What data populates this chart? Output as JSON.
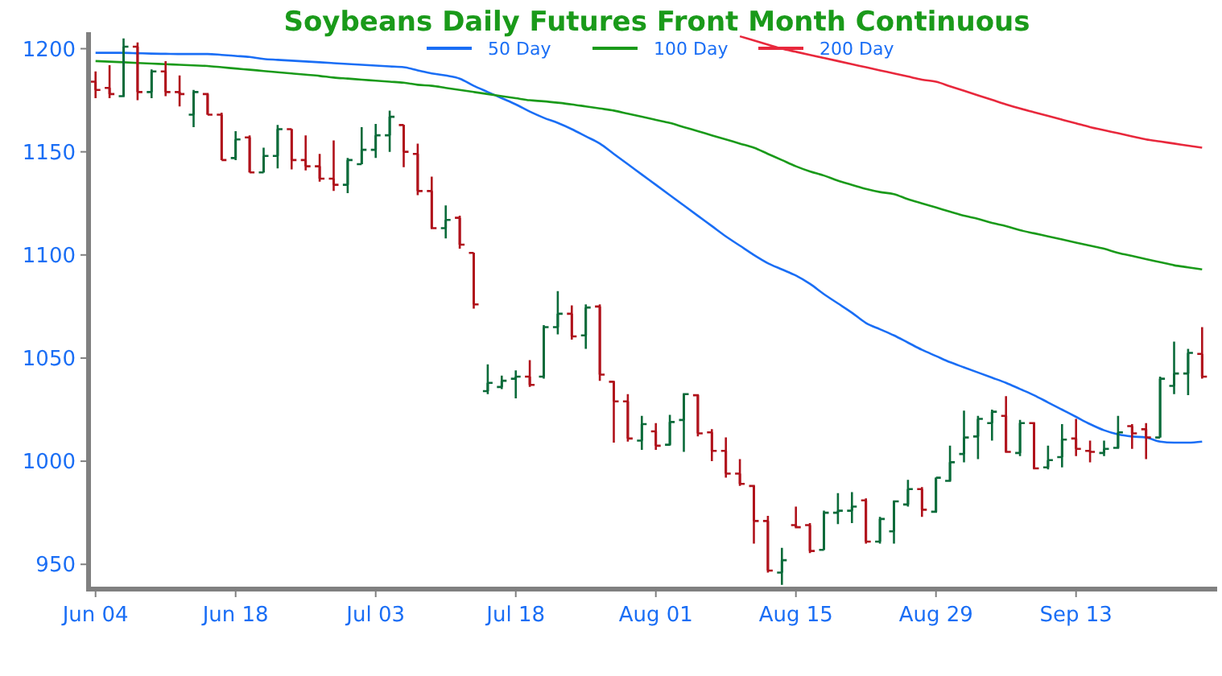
{
  "chart_data": {
    "type": "candlestick",
    "title": "Soybeans Daily Futures Front Month Continuous",
    "categories": [
      "Jun 04",
      null,
      null,
      null,
      null,
      null,
      null,
      null,
      null,
      null,
      "Jun 18",
      null,
      null,
      null,
      null,
      null,
      null,
      null,
      null,
      null,
      "Jul 03",
      null,
      null,
      null,
      null,
      null,
      null,
      null,
      null,
      null,
      "Jul 18",
      null,
      null,
      null,
      null,
      null,
      null,
      null,
      null,
      null,
      "Aug 01",
      null,
      null,
      null,
      null,
      null,
      null,
      null,
      null,
      null,
      "Aug 15",
      null,
      null,
      null,
      null,
      null,
      null,
      null,
      null,
      null,
      "Aug 29",
      null,
      null,
      null,
      null,
      null,
      null,
      null,
      null,
      null,
      "Sep 13",
      null,
      null,
      null,
      null,
      null,
      null,
      null,
      null,
      null
    ],
    "ohlc": [
      [
        1184,
        1189,
        1176,
        1180
      ],
      [
        1181,
        1192,
        1176,
        1178
      ],
      [
        1177,
        1205,
        1176.5,
        1201
      ],
      [
        1201,
        1203,
        1175,
        1179
      ],
      [
        1179,
        1190,
        1176,
        1189
      ],
      [
        1189,
        1194,
        1177,
        1179
      ],
      [
        1179,
        1187,
        1172,
        1178
      ],
      [
        1168,
        1180,
        1162,
        1179
      ],
      [
        1178,
        1178.5,
        1168,
        1168
      ],
      [
        1168,
        1169,
        1146,
        1146
      ],
      [
        1147,
        1160,
        1146,
        1156
      ],
      [
        1157,
        1158,
        1140,
        1140
      ],
      [
        1140,
        1152,
        1140,
        1148
      ],
      [
        1148,
        1163,
        1142,
        1161
      ],
      [
        1161,
        1161,
        1141.5,
        1146
      ],
      [
        1146,
        1158,
        1141,
        1143
      ],
      [
        1143,
        1149,
        1135.5,
        1137
      ],
      [
        1137,
        1155.5,
        1131,
        1134
      ],
      [
        1134,
        1147,
        1130,
        1146
      ],
      [
        1144,
        1162,
        1144,
        1151
      ],
      [
        1151,
        1163.5,
        1147,
        1158
      ],
      [
        1158,
        1170,
        1150,
        1167
      ],
      [
        1163,
        1163,
        1142.5,
        1150
      ],
      [
        1149,
        1154,
        1129,
        1131
      ],
      [
        1131,
        1138,
        1112.5,
        1113
      ],
      [
        1113,
        1124,
        1108,
        1117
      ],
      [
        1118,
        1119,
        1103,
        1105
      ],
      [
        1101,
        1101,
        1074,
        1076
      ],
      [
        1034,
        1047,
        1032.5,
        1038
      ],
      [
        1036,
        1041.5,
        1035,
        1039
      ],
      [
        1040,
        1044,
        1030.5,
        1041
      ],
      [
        1041,
        1049,
        1036,
        1037
      ],
      [
        1041,
        1066,
        1040,
        1065
      ],
      [
        1065,
        1082.5,
        1061.5,
        1071.5
      ],
      [
        1071.5,
        1075.5,
        1059,
        1060.5
      ],
      [
        1061,
        1076,
        1054.5,
        1074.5
      ],
      [
        1075,
        1076,
        1039,
        1042
      ],
      [
        1038.5,
        1039,
        1009,
        1029
      ],
      [
        1029,
        1032.5,
        1009.5,
        1011
      ],
      [
        1010,
        1022,
        1005.5,
        1018
      ],
      [
        1014.5,
        1018.5,
        1005.5,
        1007.5
      ],
      [
        1008,
        1022.5,
        1007.5,
        1019
      ],
      [
        1020,
        1033,
        1004.5,
        1032.5
      ],
      [
        1032,
        1032.5,
        1012,
        1013.5
      ],
      [
        1014,
        1015.5,
        1000,
        1005
      ],
      [
        1005,
        1011.5,
        992,
        994
      ],
      [
        994,
        1001,
        988,
        989
      ],
      [
        988,
        988.5,
        960,
        971
      ],
      [
        971,
        973.5,
        946,
        947
      ],
      [
        946,
        958,
        940,
        952
      ],
      [
        969,
        978,
        967.5,
        968
      ],
      [
        969,
        970,
        955.5,
        956.5
      ],
      [
        957,
        976,
        957,
        975
      ],
      [
        975,
        984.5,
        969.5,
        976
      ],
      [
        976,
        985,
        970,
        978
      ],
      [
        981,
        982,
        960,
        961
      ],
      [
        961,
        973,
        960,
        972
      ],
      [
        966,
        981,
        960,
        980.5
      ],
      [
        979,
        991,
        978,
        986.5
      ],
      [
        986.5,
        987.5,
        973,
        976.5
      ],
      [
        975.5,
        992,
        975,
        992
      ],
      [
        990.5,
        1007.5,
        990,
        999.5
      ],
      [
        1003.5,
        1024.5,
        999.5,
        1011.5
      ],
      [
        1012,
        1022,
        1001,
        1020.5
      ],
      [
        1018.5,
        1025,
        1010,
        1024
      ],
      [
        1022,
        1031.5,
        1004,
        1004.5
      ],
      [
        1004,
        1020,
        1002.5,
        1018.5
      ],
      [
        1018.5,
        1019,
        996,
        996.5
      ],
      [
        997,
        1007.5,
        996,
        1000.5
      ],
      [
        1002,
        1018,
        997,
        1010.5
      ],
      [
        1011,
        1020.5,
        1002.5,
        1006
      ],
      [
        1005,
        1010,
        999.5,
        1004.5
      ],
      [
        1004,
        1010,
        1002.5,
        1006
      ],
      [
        1006.5,
        1022,
        1006,
        1014
      ],
      [
        1017,
        1018,
        1006,
        1013.5
      ],
      [
        1015.5,
        1018.5,
        1001,
        1011.5
      ],
      [
        1011.5,
        1041,
        1011.5,
        1040
      ],
      [
        1036.5,
        1058,
        1032.5,
        1042.5
      ],
      [
        1042.5,
        1054.5,
        1032,
        1052.5
      ],
      [
        1052,
        1065,
        1040,
        1041
      ]
    ],
    "colors": [
      "#b0121b",
      "#b0121b",
      "#0b6b3a",
      "#b0121b",
      "#0b6b3a",
      "#b0121b",
      "#b0121b",
      "#0b6b3a",
      "#b0121b",
      "#b0121b",
      "#0b6b3a",
      "#b0121b",
      "#0b6b3a",
      "#0b6b3a",
      "#b0121b",
      "#b0121b",
      "#b0121b",
      "#b0121b",
      "#0b6b3a",
      "#0b6b3a",
      "#0b6b3a",
      "#0b6b3a",
      "#b0121b",
      "#b0121b",
      "#b0121b",
      "#0b6b3a",
      "#b0121b",
      "#b0121b",
      "#0b6b3a",
      "#0b6b3a",
      "#0b6b3a",
      "#b0121b",
      "#0b6b3a",
      "#0b6b3a",
      "#b0121b",
      "#0b6b3a",
      "#b0121b",
      "#b0121b",
      "#b0121b",
      "#0b6b3a",
      "#b0121b",
      "#0b6b3a",
      "#0b6b3a",
      "#b0121b",
      "#b0121b",
      "#b0121b",
      "#b0121b",
      "#b0121b",
      "#b0121b",
      "#0b6b3a",
      "#b0121b",
      "#b0121b",
      "#0b6b3a",
      "#0b6b3a",
      "#0b6b3a",
      "#b0121b",
      "#0b6b3a",
      "#0b6b3a",
      "#0b6b3a",
      "#b0121b",
      "#0b6b3a",
      "#0b6b3a",
      "#0b6b3a",
      "#0b6b3a",
      "#0b6b3a",
      "#b0121b",
      "#0b6b3a",
      "#b0121b",
      "#0b6b3a",
      "#0b6b3a",
      "#b0121b",
      "#b0121b",
      "#0b6b3a",
      "#0b6b3a",
      "#b0121b",
      "#b0121b",
      "#0b6b3a",
      "#0b6b3a",
      "#0b6b3a",
      "#b0121b"
    ],
    "series": [
      {
        "type": "line",
        "name": "50 Day",
        "color": "#1a6ef5",
        "values": [
          1198,
          1198,
          1198,
          1197.8,
          1197.6,
          1197.5,
          1197.4,
          1197.4,
          1197.4,
          1197,
          1196.5,
          1196,
          1195,
          1194.6,
          1194.2,
          1193.8,
          1193.4,
          1193,
          1192.6,
          1192.2,
          1191.8,
          1191.4,
          1191,
          1189.5,
          1188,
          1187,
          1185.5,
          1182,
          1179,
          1176,
          1173,
          1169.5,
          1166.5,
          1164,
          1161,
          1157.5,
          1154,
          1149,
          1144,
          1139,
          1134,
          1129,
          1124,
          1119,
          1114,
          1109,
          1104.5,
          1100,
          1096,
          1093,
          1090,
          1086,
          1081,
          1076.5,
          1072,
          1067,
          1064,
          1061,
          1057.5,
          1054,
          1051,
          1048,
          1045.5,
          1043,
          1040.5,
          1038,
          1035,
          1032,
          1028.5,
          1025,
          1021.5,
          1018,
          1015,
          1013,
          1012,
          1011.5,
          1009.5,
          1009,
          1009,
          1009.5
        ]
      },
      {
        "type": "line",
        "name": "100 Day",
        "color": "#1a9a1a",
        "values": [
          1194,
          1193.7,
          1193.4,
          1193.1,
          1192.8,
          1192.5,
          1192.2,
          1191.9,
          1191.6,
          1191,
          1190.4,
          1189.8,
          1189.2,
          1188.6,
          1188,
          1187.4,
          1186.8,
          1186,
          1185.5,
          1185,
          1184.5,
          1184,
          1183.5,
          1182.5,
          1182,
          1181,
          1180,
          1179,
          1178,
          1177,
          1176,
          1175,
          1174.5,
          1173.8,
          1173,
          1172,
          1171,
          1170,
          1168.5,
          1167,
          1165.5,
          1164,
          1162,
          1160,
          1158,
          1156,
          1154,
          1152,
          1149,
          1146,
          1143,
          1140.5,
          1138.5,
          1136,
          1134,
          1132,
          1130.5,
          1129.5,
          1127,
          1125,
          1123,
          1121,
          1119,
          1117.5,
          1115.5,
          1114,
          1112,
          1110.5,
          1109,
          1107.5,
          1106,
          1104.5,
          1103,
          1101,
          1099.5,
          1098,
          1096.5,
          1095,
          1094,
          1093
        ]
      },
      {
        "type": "line",
        "name": "200 Day",
        "color": "#e8283c",
        "values": [
          null,
          null,
          null,
          null,
          null,
          null,
          null,
          null,
          null,
          null,
          null,
          null,
          null,
          null,
          null,
          null,
          null,
          null,
          null,
          null,
          null,
          null,
          null,
          null,
          null,
          null,
          null,
          null,
          null,
          null,
          null,
          null,
          null,
          null,
          null,
          null,
          null,
          null,
          null,
          null,
          null,
          null,
          null,
          null,
          null,
          null,
          1206,
          1204,
          1202,
          1200,
          1198.5,
          1197,
          1195.5,
          1194,
          1192.5,
          1191,
          1189.5,
          1188,
          1186.5,
          1185,
          1184,
          1181.8,
          1179.6,
          1177.4,
          1175.2,
          1173,
          1171,
          1169.2,
          1167.4,
          1165.6,
          1163.8,
          1162,
          1160.5,
          1159,
          1157.5,
          1156,
          1155,
          1154,
          1153,
          1152
        ]
      }
    ],
    "ylim": [
      938,
      1208
    ],
    "yticks": [
      950,
      1000,
      1050,
      1100,
      1150,
      1200
    ],
    "grid": false,
    "legend": "top"
  }
}
